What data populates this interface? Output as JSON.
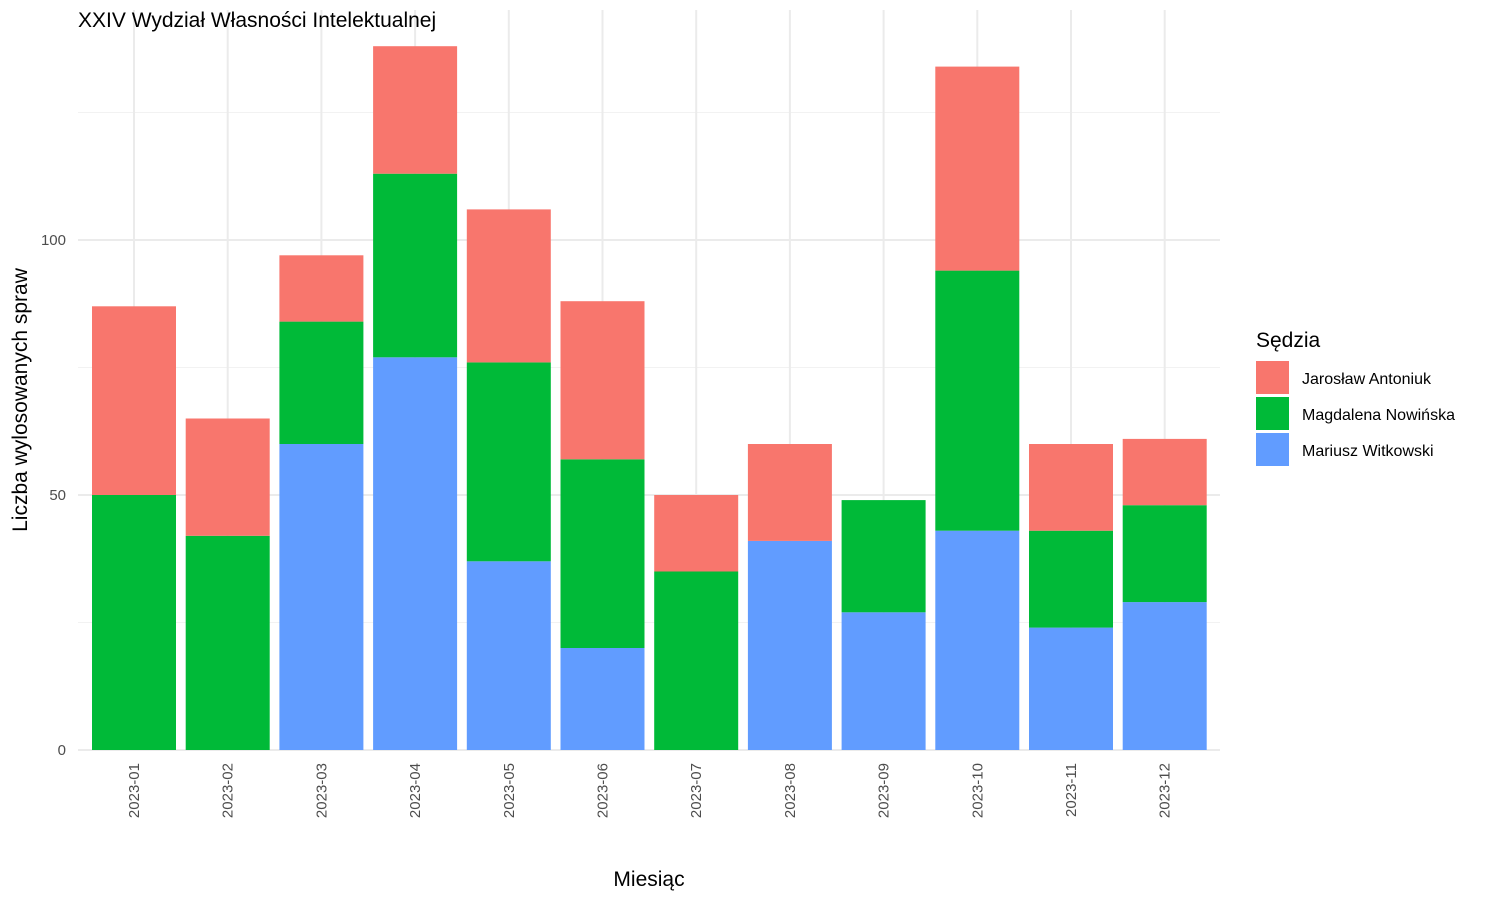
{
  "chart_data": {
    "type": "bar",
    "stacked": true,
    "title": "XXIV Wydział Własności Intelektualnej",
    "xlabel": "Miesiąc",
    "ylabel": "Liczba wylosowanych spraw",
    "categories": [
      "2023-01",
      "2023-02",
      "2023-03",
      "2023-04",
      "2023-05",
      "2023-06",
      "2023-07",
      "2023-08",
      "2023-09",
      "2023-10",
      "2023-11",
      "2023-12"
    ],
    "series": [
      {
        "name": "Mariusz Witkowski",
        "color": "#619CFF",
        "values": [
          0,
          0,
          60,
          77,
          37,
          20,
          0,
          41,
          27,
          43,
          24,
          29
        ]
      },
      {
        "name": "Magdalena Nowińska",
        "color": "#00BA38",
        "values": [
          50,
          42,
          24,
          36,
          39,
          37,
          35,
          0,
          22,
          51,
          19,
          19
        ]
      },
      {
        "name": "Jarosław Antoniuk",
        "color": "#F8766D",
        "values": [
          37,
          23,
          13,
          25,
          30,
          31,
          15,
          19,
          0,
          40,
          17,
          13
        ]
      }
    ],
    "ylim": [
      0,
      140
    ],
    "yticks": [
      0,
      50,
      100
    ],
    "grid": true,
    "legend": {
      "title": "Sędzia",
      "position": "right",
      "items": [
        "Jarosław Antoniuk",
        "Magdalena Nowińska",
        "Mariusz Witkowski"
      ]
    }
  }
}
